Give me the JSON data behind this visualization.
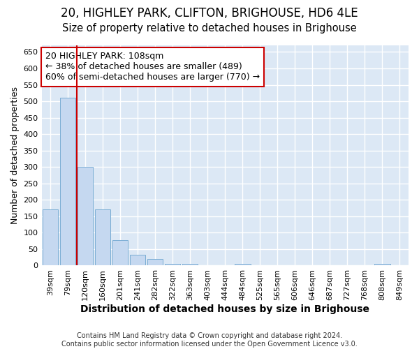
{
  "title": "20, HIGHLEY PARK, CLIFTON, BRIGHOUSE, HD6 4LE",
  "subtitle": "Size of property relative to detached houses in Brighouse",
  "xlabel": "Distribution of detached houses by size in Brighouse",
  "ylabel": "Number of detached properties",
  "bar_color": "#c5d8f0",
  "bar_edge_color": "#7aadd4",
  "background_color": "#dce8f5",
  "grid_color": "#ffffff",
  "fig_background": "#ffffff",
  "categories": [
    "39sqm",
    "79sqm",
    "120sqm",
    "160sqm",
    "201sqm",
    "241sqm",
    "282sqm",
    "322sqm",
    "363sqm",
    "403sqm",
    "444sqm",
    "484sqm",
    "525sqm",
    "565sqm",
    "606sqm",
    "646sqm",
    "687sqm",
    "727sqm",
    "768sqm",
    "808sqm",
    "849sqm"
  ],
  "values": [
    170,
    510,
    300,
    170,
    78,
    32,
    20,
    5,
    5,
    0,
    0,
    5,
    0,
    0,
    0,
    0,
    0,
    0,
    0,
    5,
    0
  ],
  "ylim": [
    0,
    670
  ],
  "yticks": [
    0,
    50,
    100,
    150,
    200,
    250,
    300,
    350,
    400,
    450,
    500,
    550,
    600,
    650
  ],
  "vline_position": 1.5,
  "vline_color": "#cc0000",
  "annotation_text": "20 HIGHLEY PARK: 108sqm\n← 38% of detached houses are smaller (489)\n60% of semi-detached houses are larger (770) →",
  "annotation_box_color": "#ffffff",
  "annotation_box_edge": "#cc0000",
  "footer": "Contains HM Land Registry data © Crown copyright and database right 2024.\nContains public sector information licensed under the Open Government Licence v3.0.",
  "title_fontsize": 12,
  "subtitle_fontsize": 10.5,
  "xlabel_fontsize": 10,
  "ylabel_fontsize": 9,
  "tick_fontsize": 8,
  "annotation_fontsize": 9,
  "footer_fontsize": 7
}
